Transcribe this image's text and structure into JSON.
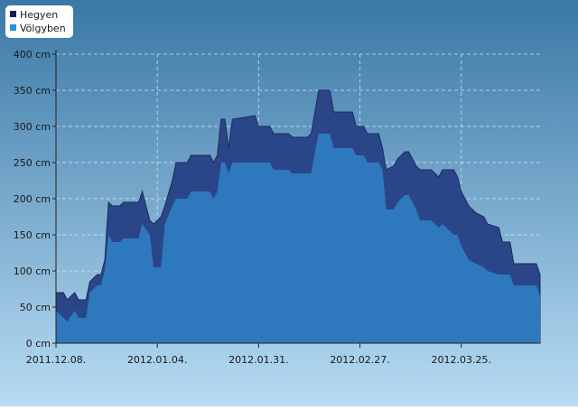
{
  "chart_data": {
    "type": "area",
    "x": [
      "2011.12.08.",
      "2011.12.10.",
      "2011.12.11.",
      "2011.12.13.",
      "2011.12.14.",
      "2011.12.16.",
      "2011.12.17.",
      "2011.12.19.",
      "2011.12.20.",
      "2011.12.21.",
      "2011.12.22.",
      "2011.12.23.",
      "2011.12.25.",
      "2011.12.26.",
      "2011.12.30.",
      "2011.12.31.",
      "2012.01.02.",
      "2012.01.03.",
      "2012.01.05.",
      "2012.01.06.",
      "2012.01.08.",
      "2012.01.09.",
      "2012.01.12.",
      "2012.01.13.",
      "2012.01.18.",
      "2012.01.19.",
      "2012.01.20.",
      "2012.01.21.",
      "2012.01.22.",
      "2012.01.23.",
      "2012.01.24.",
      "2012.01.30.",
      "2012.01.31.",
      "2012.02.03.",
      "2012.02.04.",
      "2012.02.08.",
      "2012.02.09.",
      "2012.02.13.",
      "2012.02.14.",
      "2012.02.15.",
      "2012.02.16.",
      "2012.02.19.",
      "2012.02.20.",
      "2012.02.25.",
      "2012.02.26.",
      "2012.02.28.",
      "2012.02.29.",
      "2012.03.03.",
      "2012.03.04.",
      "2012.03.05.",
      "2012.03.07.",
      "2012.03.08.",
      "2012.03.10.",
      "2012.03.11.",
      "2012.03.13.",
      "2012.03.14.",
      "2012.03.17.",
      "2012.03.19.",
      "2012.03.20.",
      "2012.03.23.",
      "2012.03.24.",
      "2012.03.25.",
      "2012.03.27.",
      "2012.03.29.",
      "2012.03.31.",
      "2012.04.01.",
      "2012.04.04.",
      "2012.04.05.",
      "2012.04.07.",
      "2012.04.08.",
      "2012.04.14.",
      "2012.04.15."
    ],
    "series": [
      {
        "name": "Hegyen",
        "color": "#2a4688",
        "values": [
          70,
          70,
          60,
          70,
          60,
          60,
          85,
          95,
          95,
          115,
          195,
          190,
          190,
          195,
          195,
          210,
          170,
          165,
          175,
          190,
          225,
          250,
          250,
          260,
          260,
          250,
          260,
          310,
          310,
          270,
          310,
          315,
          300,
          300,
          290,
          290,
          285,
          285,
          290,
          320,
          350,
          350,
          320,
          320,
          300,
          300,
          290,
          290,
          270,
          240,
          245,
          255,
          265,
          265,
          245,
          240,
          240,
          230,
          240,
          240,
          230,
          210,
          190,
          180,
          175,
          165,
          160,
          140,
          140,
          110,
          110,
          95
        ]
      },
      {
        "name": "Völgyben",
        "color": "#2e78bd",
        "values": [
          45,
          35,
          30,
          45,
          35,
          35,
          70,
          80,
          80,
          100,
          150,
          140,
          140,
          145,
          145,
          165,
          150,
          105,
          105,
          165,
          190,
          200,
          200,
          210,
          210,
          200,
          210,
          250,
          250,
          235,
          250,
          250,
          250,
          250,
          240,
          240,
          235,
          235,
          235,
          265,
          290,
          290,
          270,
          270,
          260,
          260,
          250,
          250,
          240,
          185,
          185,
          195,
          205,
          205,
          185,
          170,
          170,
          160,
          165,
          150,
          150,
          135,
          115,
          110,
          105,
          100,
          95,
          95,
          95,
          80,
          80,
          65
        ]
      }
    ],
    "xlim": [
      "2011.12.08.",
      "2012.04.15."
    ],
    "xticks": [
      "2011.12.08.",
      "2012.01.04.",
      "2012.01.31.",
      "2012.02.27.",
      "2012.03.25."
    ],
    "ylim": [
      0,
      400
    ],
    "yticks": [
      {
        "value": 0,
        "label": "0 cm"
      },
      {
        "value": 50,
        "label": "50 cm"
      },
      {
        "value": 100,
        "label": "100 cm"
      },
      {
        "value": 150,
        "label": "150 cm"
      },
      {
        "value": 200,
        "label": "200 cm"
      },
      {
        "value": 250,
        "label": "250 cm"
      },
      {
        "value": 300,
        "label": "300 cm"
      },
      {
        "value": 350,
        "label": "350 cm"
      },
      {
        "value": 400,
        "label": "400 cm"
      }
    ],
    "grid": true,
    "legend": "top-left"
  }
}
